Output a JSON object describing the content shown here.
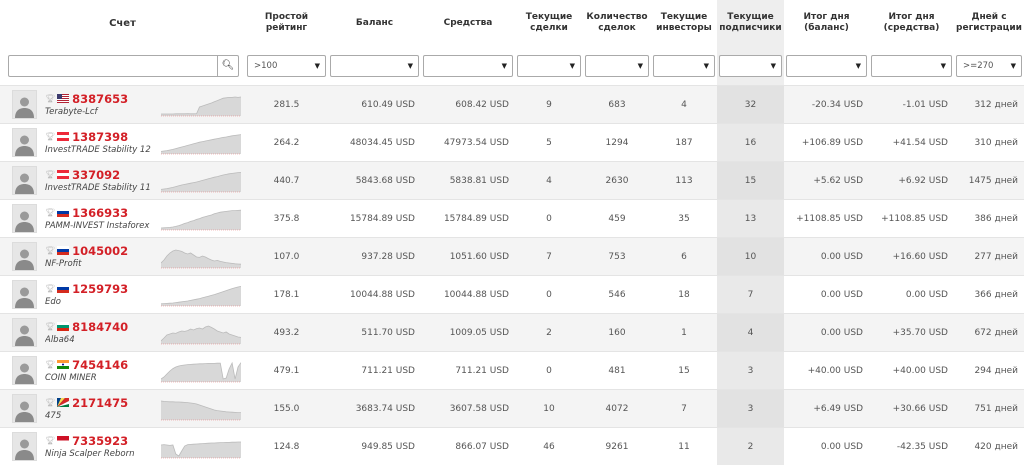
{
  "columns": {
    "account": "Счет",
    "rating": "Простой рейтинг",
    "balance": "Баланс",
    "funds": "Средства",
    "current_trades": "Текущие сделки",
    "trade_count": "Количество сделок",
    "investors": "Текущие инвесторы",
    "subscribers": "Текущие подписчики",
    "day_balance": "Итог дня (баланс)",
    "day_funds": "Итог дня (средства)",
    "days_registered": "Дней с регистрации"
  },
  "filters": {
    "search_value": "",
    "search_icon": "search-icon",
    "rating": ">100",
    "balance": "",
    "funds": "",
    "current_trades": "",
    "trade_count": "",
    "investors": "",
    "subscribers": "",
    "day_balance": "",
    "day_funds": "",
    "days_registered": ">=270"
  },
  "rows": [
    {
      "id": "8387653",
      "name": "Terabyte-Lcf",
      "flag": "us",
      "rating": "281.5",
      "balance": "610.49 USD",
      "funds": "608.42 USD",
      "current_trades": "9",
      "trade_count": "683",
      "investors": "4",
      "subscribers": "32",
      "day_balance": "-20.34 USD",
      "day_funds": "-1.01 USD",
      "days": "312 дней",
      "spark": [
        0.05,
        0.05,
        0.05,
        0.05,
        0.05,
        0.06,
        0.06,
        0.06,
        0.06,
        0.07,
        0.06,
        0.06,
        0.07,
        0.4,
        0.45,
        0.5,
        0.55,
        0.6,
        0.66,
        0.72,
        0.78,
        0.84,
        0.86,
        0.88,
        0.88,
        0.9,
        0.88,
        0.9
      ]
    },
    {
      "id": "1387398",
      "name": "InvestTRADE Stability 12",
      "flag": "at",
      "rating": "264.2",
      "balance": "48034.45 USD",
      "funds": "47973.54 USD",
      "current_trades": "5",
      "trade_count": "1294",
      "investors": "187",
      "subscribers": "16",
      "day_balance": "+106.89 USD",
      "day_funds": "+41.54 USD",
      "days": "310 дней",
      "spark": [
        0.08,
        0.1,
        0.12,
        0.15,
        0.18,
        0.22,
        0.26,
        0.3,
        0.34,
        0.38,
        0.42,
        0.46,
        0.5,
        0.54,
        0.57,
        0.6,
        0.63,
        0.66,
        0.69,
        0.72,
        0.75,
        0.78,
        0.8,
        0.83,
        0.86,
        0.88,
        0.9,
        0.92
      ]
    },
    {
      "id": "337092",
      "name": "InvestTRADE Stability 11",
      "flag": "at",
      "rating": "440.7",
      "balance": "5843.68 USD",
      "funds": "5838.81 USD",
      "current_trades": "4",
      "trade_count": "2630",
      "investors": "113",
      "subscribers": "15",
      "day_balance": "+5.62 USD",
      "day_funds": "+6.92 USD",
      "days": "1475 дней",
      "spark": [
        0.08,
        0.1,
        0.12,
        0.15,
        0.18,
        0.22,
        0.26,
        0.3,
        0.33,
        0.36,
        0.39,
        0.42,
        0.45,
        0.49,
        0.53,
        0.57,
        0.61,
        0.65,
        0.69,
        0.72,
        0.76,
        0.8,
        0.83,
        0.86,
        0.88,
        0.9,
        0.92,
        0.93
      ]
    },
    {
      "id": "1366933",
      "name": "PAMM-INVEST Instaforex",
      "flag": "ru",
      "rating": "375.8",
      "balance": "15784.89 USD",
      "funds": "15784.89 USD",
      "current_trades": "0",
      "trade_count": "459",
      "investors": "35",
      "subscribers": "13",
      "day_balance": "+1108.85 USD",
      "day_funds": "+1108.85 USD",
      "days": "386 дней",
      "spark": [
        0.05,
        0.06,
        0.07,
        0.08,
        0.1,
        0.13,
        0.17,
        0.22,
        0.28,
        0.32,
        0.38,
        0.42,
        0.48,
        0.52,
        0.58,
        0.62,
        0.66,
        0.7,
        0.76,
        0.8,
        0.84,
        0.86,
        0.88,
        0.9,
        0.92,
        0.92,
        0.93,
        0.94
      ]
    },
    {
      "id": "1045002",
      "name": "NF-Profit",
      "flag": "ru",
      "rating": "107.0",
      "balance": "937.28 USD",
      "funds": "1051.60 USD",
      "current_trades": "7",
      "trade_count": "753",
      "investors": "6",
      "subscribers": "10",
      "day_balance": "0.00 USD",
      "day_funds": "+16.60 USD",
      "days": "277 дней",
      "spark": [
        0.2,
        0.35,
        0.55,
        0.7,
        0.8,
        0.85,
        0.82,
        0.78,
        0.7,
        0.65,
        0.7,
        0.6,
        0.5,
        0.48,
        0.55,
        0.5,
        0.42,
        0.35,
        0.3,
        0.33,
        0.28,
        0.25,
        0.22,
        0.2,
        0.18,
        0.16,
        0.15,
        0.14
      ]
    },
    {
      "id": "1259793",
      "name": "Edo",
      "flag": "ru",
      "rating": "178.1",
      "balance": "10044.88 USD",
      "funds": "10044.88 USD",
      "current_trades": "0",
      "trade_count": "546",
      "investors": "18",
      "subscribers": "7",
      "day_balance": "0.00 USD",
      "day_funds": "0.00 USD",
      "days": "366 дней",
      "spark": [
        0.06,
        0.07,
        0.08,
        0.09,
        0.1,
        0.12,
        0.14,
        0.16,
        0.18,
        0.2,
        0.23,
        0.26,
        0.29,
        0.32,
        0.36,
        0.4,
        0.44,
        0.48,
        0.52,
        0.57,
        0.62,
        0.67,
        0.72,
        0.77,
        0.82,
        0.86,
        0.9,
        0.93
      ]
    },
    {
      "id": "8184740",
      "name": "Alba64",
      "flag": "bg",
      "rating": "493.2",
      "balance": "511.70 USD",
      "funds": "1009.05 USD",
      "current_trades": "2",
      "trade_count": "160",
      "investors": "1",
      "subscribers": "4",
      "day_balance": "0.00 USD",
      "day_funds": "+35.70 USD",
      "days": "672 дней",
      "spark": [
        0.1,
        0.25,
        0.4,
        0.45,
        0.5,
        0.48,
        0.55,
        0.6,
        0.58,
        0.62,
        0.7,
        0.65,
        0.72,
        0.75,
        0.7,
        0.8,
        0.85,
        0.78,
        0.7,
        0.6,
        0.55,
        0.5,
        0.55,
        0.45,
        0.4,
        0.35,
        0.3,
        0.28
      ]
    },
    {
      "id": "7454146",
      "name": "COIN MINER",
      "flag": "in",
      "rating": "479.1",
      "balance": "711.21 USD",
      "funds": "711.21 USD",
      "current_trades": "0",
      "trade_count": "481",
      "investors": "15",
      "subscribers": "3",
      "day_balance": "+40.00 USD",
      "day_funds": "+40.00 USD",
      "days": "294 дней",
      "spark": [
        0.1,
        0.2,
        0.35,
        0.5,
        0.62,
        0.7,
        0.75,
        0.78,
        0.8,
        0.82,
        0.83,
        0.84,
        0.85,
        0.86,
        0.86,
        0.87,
        0.88,
        0.88,
        0.88,
        0.89,
        0.89,
        0.1,
        0.15,
        0.6,
        0.9,
        0.1,
        0.7,
        0.92
      ]
    },
    {
      "id": "2171475",
      "name": "475",
      "flag": "sc",
      "rating": "155.0",
      "balance": "3683.74 USD",
      "funds": "3607.58 USD",
      "current_trades": "10",
      "trade_count": "4072",
      "investors": "7",
      "subscribers": "3",
      "day_balance": "+6.49 USD",
      "day_funds": "+30.66 USD",
      "days": "751 дней",
      "spark": [
        0.9,
        0.88,
        0.87,
        0.86,
        0.86,
        0.85,
        0.85,
        0.84,
        0.83,
        0.82,
        0.8,
        0.78,
        0.75,
        0.7,
        0.65,
        0.6,
        0.55,
        0.5,
        0.45,
        0.42,
        0.4,
        0.38,
        0.36,
        0.35,
        0.34,
        0.33,
        0.32,
        0.32
      ]
    },
    {
      "id": "7335923",
      "name": "Ninja Scalper Reborn",
      "flag": "id",
      "rating": "124.8",
      "balance": "949.85 USD",
      "funds": "866.07 USD",
      "current_trades": "46",
      "trade_count": "9261",
      "investors": "11",
      "subscribers": "2",
      "day_balance": "0.00 USD",
      "day_funds": "-42.35 USD",
      "days": "420 дней",
      "spark": [
        0.6,
        0.62,
        0.6,
        0.58,
        0.6,
        0.15,
        0.05,
        0.3,
        0.55,
        0.62,
        0.63,
        0.64,
        0.65,
        0.66,
        0.67,
        0.68,
        0.69,
        0.7,
        0.7,
        0.71,
        0.72,
        0.72,
        0.73,
        0.73,
        0.74,
        0.74,
        0.75,
        0.75
      ]
    }
  ],
  "colors": {
    "account_id": "#d32027",
    "spark_fill": "#d8d8d8",
    "spark_line": "#bbbbbb",
    "spark_baseline": "#e87b7b",
    "subscribers_column": "#e9e9e9"
  }
}
